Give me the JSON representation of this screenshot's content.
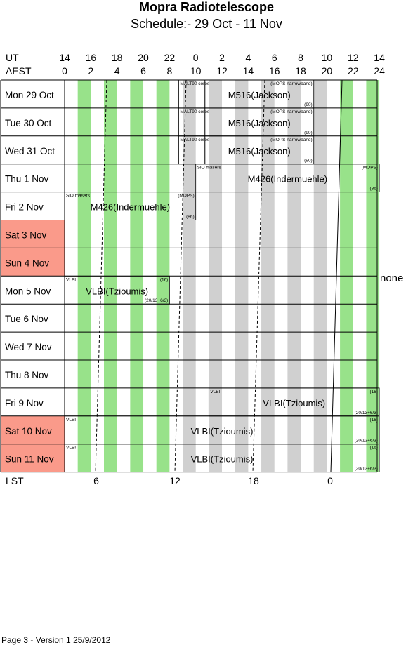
{
  "header": {
    "title": "Mopra Radiotelescope",
    "subtitle": "Schedule:- 29 Oct - 11 Nov"
  },
  "axes": {
    "ut_label": "UT",
    "aest_label": "AEST",
    "lst_label": "LST",
    "ut_ticks": [
      "14",
      "16",
      "18",
      "20",
      "22",
      "0",
      "2",
      "4",
      "6",
      "8",
      "10",
      "12",
      "14"
    ],
    "aest_ticks": [
      "0",
      "2",
      "4",
      "6",
      "8",
      "10",
      "12",
      "14",
      "16",
      "18",
      "20",
      "22",
      "24"
    ],
    "lst_ticks": [
      "6",
      "12",
      "18",
      "0"
    ]
  },
  "days": [
    {
      "dow": "Mon",
      "date": "29 Oct",
      "weekend": false
    },
    {
      "dow": "Tue",
      "date": "30 Oct",
      "weekend": false
    },
    {
      "dow": "Wed",
      "date": "31 Oct",
      "weekend": false
    },
    {
      "dow": "Thu",
      "date": "1 Nov",
      "weekend": false
    },
    {
      "dow": "Fri",
      "date": "2 Nov",
      "weekend": false
    },
    {
      "dow": "Sat",
      "date": "3 Nov",
      "weekend": true
    },
    {
      "dow": "Sun",
      "date": "4 Nov",
      "weekend": true
    },
    {
      "dow": "Mon",
      "date": "5 Nov",
      "weekend": false
    },
    {
      "dow": "Tue",
      "date": "6 Nov",
      "weekend": false
    },
    {
      "dow": "Wed",
      "date": "7 Nov",
      "weekend": false
    },
    {
      "dow": "Thu",
      "date": "8 Nov",
      "weekend": false
    },
    {
      "dow": "Fri",
      "date": "9 Nov",
      "weekend": false
    },
    {
      "dow": "Sat",
      "date": "10 Nov",
      "weekend": true
    },
    {
      "dow": "Sun",
      "date": "11 Nov",
      "weekend": true
    }
  ],
  "bookings": [
    {
      "day": 0,
      "start_aest": 8.7,
      "end_aest": 10.7,
      "tl": "MALT90 cores",
      "proj": "",
      "tr": "",
      "br": ""
    },
    {
      "day": 0,
      "start_aest": 10.7,
      "end_aest": 19.0,
      "tl": "",
      "proj": "M516(Jackson)",
      "tr": "(MOPS narrowband)",
      "br": "(90)"
    },
    {
      "day": 1,
      "start_aest": 8.7,
      "end_aest": 10.7,
      "tl": "MALT90 cores",
      "proj": "",
      "tr": "",
      "br": ""
    },
    {
      "day": 1,
      "start_aest": 10.7,
      "end_aest": 19.0,
      "tl": "",
      "proj": "M516(Jackson)",
      "tr": "(MOPS narrowband)",
      "br": "(90)"
    },
    {
      "day": 2,
      "start_aest": 8.7,
      "end_aest": 10.7,
      "tl": "MALT90 cores",
      "proj": "",
      "tr": "",
      "br": ""
    },
    {
      "day": 2,
      "start_aest": 10.7,
      "end_aest": 19.0,
      "tl": "",
      "proj": "M516(Jackson)",
      "tr": "(MOPS narrowband)",
      "br": "(90)"
    },
    {
      "day": 3,
      "start_aest": 10.0,
      "end_aest": 24.0,
      "tl": "SiO masers",
      "proj": "M426(Indermuehle)",
      "tr": "(MOPS)",
      "br": "(86)"
    },
    {
      "day": 4,
      "start_aest": 0.0,
      "end_aest": 10.0,
      "tl": "SiO masers",
      "proj": "M426(Indermuehle)",
      "tr": "(MOPS)",
      "br": "(86)"
    },
    {
      "day": 7,
      "start_aest": 0.0,
      "end_aest": 8.0,
      "tl": "VLBI",
      "proj": "VLBI(Tzioumis)",
      "tr": "(16)",
      "br": "(20/13+6/3)"
    },
    {
      "day": 11,
      "start_aest": 11.0,
      "end_aest": 24.0,
      "tl": "VLBI",
      "proj": "VLBI(Tzioumis)",
      "tr": "(16)",
      "br": "(20/13+6/3)"
    },
    {
      "day": 12,
      "start_aest": 0.0,
      "end_aest": 24.0,
      "tl": "VLBI",
      "proj": "VLBI(Tzioumis)",
      "tr": "(16)",
      "br": "(20/13+6/3)"
    },
    {
      "day": 13,
      "start_aest": 0.0,
      "end_aest": 24.0,
      "tl": "VLBI",
      "proj": "VLBI(Tzioumis)",
      "tr": "(16)",
      "br": "(20/13+6/3)"
    }
  ],
  "side_note": "none",
  "footer": "Page 3 - Version 1  25/9/2012",
  "colors": {
    "weekend": "#fa9a8a",
    "green": "#98e28a",
    "gray": "#d0d0d0",
    "line": "#000000"
  }
}
